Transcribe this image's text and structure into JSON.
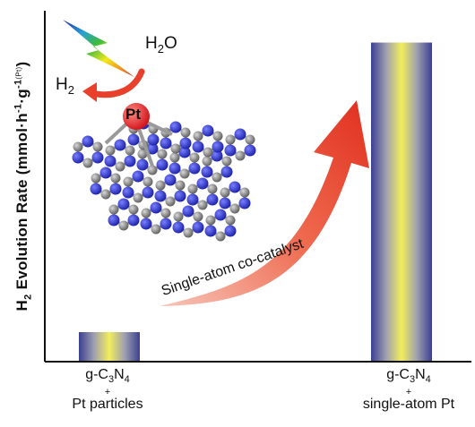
{
  "chart_data": {
    "type": "bar",
    "ylabel": {
      "main": "H",
      "sub": "2",
      "text": " Evolution Rate (mmol·h",
      "sup1": "-1",
      "mid": "·g",
      "sup2": "-1",
      "tail": "(Pt)",
      "close": ")"
    },
    "categories": [
      {
        "line1_prefix": "g-C",
        "sub1": "3",
        "mid": "N",
        "sub2": "4",
        "plus": "+",
        "line2": "Pt particles"
      },
      {
        "line1_prefix": "g-C",
        "sub1": "3",
        "mid": "N",
        "sub2": "4",
        "plus": "+",
        "line2": "single-atom Pt"
      }
    ],
    "values": [
      0.09,
      1.0
    ],
    "ylim": [
      0,
      1.1
    ],
    "annotation": "Single-atom co-catalyst",
    "inset": {
      "h2o_main": "H",
      "h2o_sub": "2",
      "h2o_tail": "O",
      "h2_main": "H",
      "h2_sub": "2",
      "pt": "Pt"
    },
    "colors": {
      "bar_edge": "#3b3f92",
      "bar_center": "#f2ee5a",
      "arrow": "#e8402a",
      "atom_n": "#2a2ec4",
      "atom_c": "#808080",
      "atom_pt": "#e8202a"
    }
  }
}
